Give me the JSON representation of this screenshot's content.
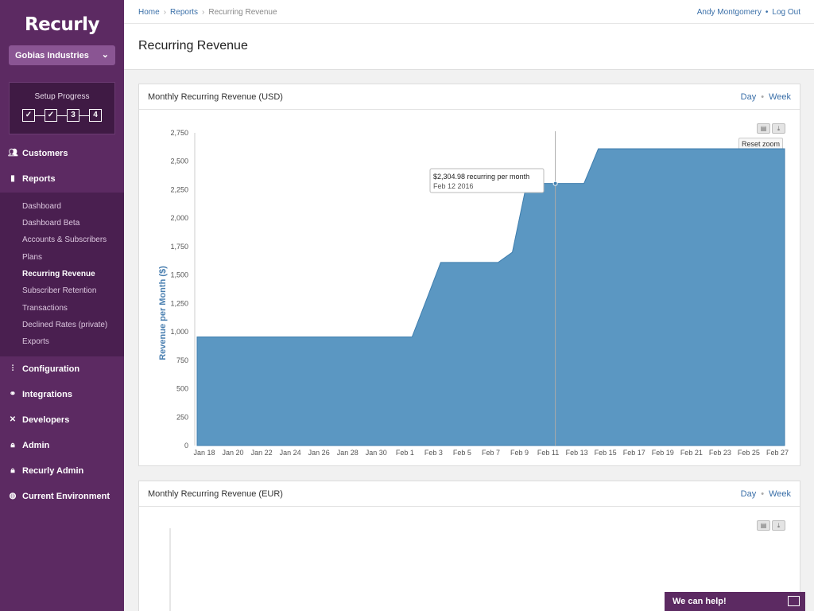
{
  "sidebar": {
    "logo": "Recurly",
    "company": "Gobias Industries",
    "setup_title": "Setup Progress",
    "steps": [
      "✓",
      "✓",
      "3",
      "4"
    ],
    "nav": [
      {
        "label": "Customers",
        "icon": "users-icon"
      },
      {
        "label": "Reports",
        "icon": "bar-chart-icon"
      },
      {
        "label": "Configuration",
        "icon": "sliders-icon"
      },
      {
        "label": "Integrations",
        "icon": "plug-icon"
      },
      {
        "label": "Developers",
        "icon": "tools-icon"
      },
      {
        "label": "Admin",
        "icon": "lock-icon"
      },
      {
        "label": "Recurly Admin",
        "icon": "lock-icon"
      },
      {
        "label": "Current Environment",
        "icon": "globe-icon"
      }
    ],
    "reports_sub": [
      {
        "label": "Dashboard"
      },
      {
        "label": "Dashboard Beta"
      },
      {
        "label": "Accounts & Subscribers"
      },
      {
        "label": "Plans"
      },
      {
        "label": "Recurring Revenue"
      },
      {
        "label": "Subscriber Retention"
      },
      {
        "label": "Transactions"
      },
      {
        "label": "Declined Rates (private)"
      },
      {
        "label": "Exports"
      }
    ]
  },
  "topbar": {
    "breadcrumb": [
      "Home",
      "Reports",
      "Recurring Revenue"
    ],
    "user": "Andy Montgomery",
    "logout": "Log Out"
  },
  "page": {
    "title": "Recurring Revenue"
  },
  "panels": [
    {
      "title": "Monthly Recurring Revenue (USD)",
      "day": "Day",
      "week": "Week"
    },
    {
      "title": "Monthly Recurring Revenue (EUR)",
      "day": "Day",
      "week": "Week"
    }
  ],
  "chart": {
    "reset_zoom": "Reset zoom"
  },
  "help": {
    "label": "We can help!"
  },
  "colors": {
    "sidebar": "#5c2a62",
    "area": "#5b97c2",
    "link": "#3a6fa8"
  },
  "chart_data": {
    "type": "area",
    "ylabel": "Revenue per Month ($)",
    "ylim": [
      0,
      2750
    ],
    "yticks": [
      0,
      250,
      500,
      750,
      1000,
      1250,
      1500,
      1750,
      2000,
      2250,
      2500,
      2750
    ],
    "xticks": [
      "Jan 18",
      "Jan 20",
      "Jan 22",
      "Jan 24",
      "Jan 26",
      "Jan 28",
      "Jan 30",
      "Feb 1",
      "Feb 3",
      "Feb 5",
      "Feb 7",
      "Feb 9",
      "Feb 11",
      "Feb 13",
      "Feb 15",
      "Feb 17",
      "Feb 19",
      "Feb 21",
      "Feb 23",
      "Feb 25",
      "Feb 27"
    ],
    "x_start": "2016-01-18",
    "x_end": "2016-02-28",
    "points": [
      {
        "date": "2016-01-18",
        "value": 955
      },
      {
        "date": "2016-02-02",
        "value": 955
      },
      {
        "date": "2016-02-03",
        "value": 1280
      },
      {
        "date": "2016-02-04",
        "value": 1610
      },
      {
        "date": "2016-02-08",
        "value": 1610
      },
      {
        "date": "2016-02-09",
        "value": 1700
      },
      {
        "date": "2016-02-10",
        "value": 2305
      },
      {
        "date": "2016-02-14",
        "value": 2305
      },
      {
        "date": "2016-02-15",
        "value": 2610
      },
      {
        "date": "2016-02-28",
        "value": 2610
      }
    ],
    "tooltip": {
      "value_text": "$2,304.98 recurring per month",
      "date_text": "Feb 12 2016",
      "date": "2016-02-12",
      "value": 2304.98
    }
  }
}
